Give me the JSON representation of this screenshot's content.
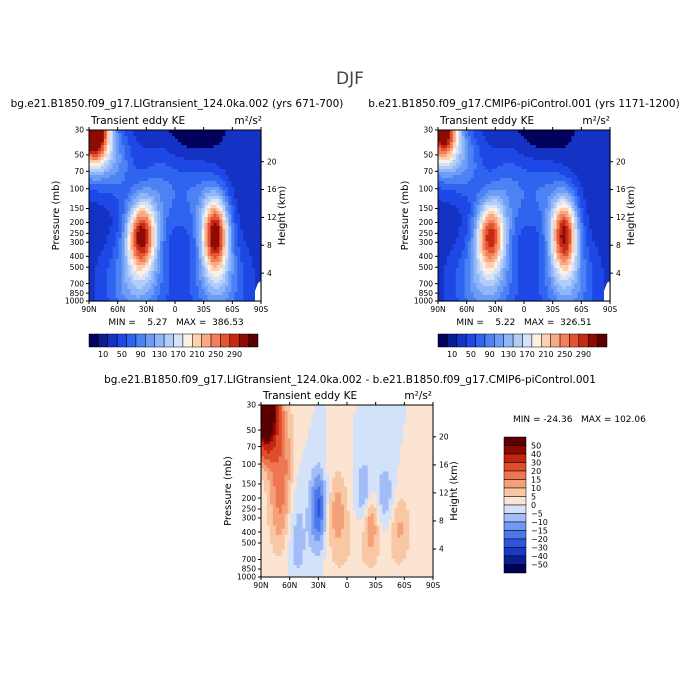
{
  "figure": {
    "title": "DJF"
  },
  "panels": [
    {
      "run_title": "bg.e21.B1850.f09_g17.LIGtransient_124.0ka.002 (yrs 671-700)",
      "variable": "Transient eddy KE",
      "units": "m²/s²",
      "stats": "MIN =    5.27   MAX =  386.53"
    },
    {
      "run_title": "b.e21.B1850.f09_g17.CMIP6-piControl.001 (yrs 1171-1200)",
      "variable": "Transient eddy KE",
      "units": "m²/s²",
      "stats": "MIN =    5.22   MAX =  326.51"
    },
    {
      "run_title": "bg.e21.B1850.f09_g17.LIGtransient_124.0ka.002 - b.e21.B1850.f09_g17.CMIP6-piControl.001",
      "variable": "Transient eddy KE",
      "units": "m²/s²",
      "stats": "MIN = -24.36   MAX = 102.06"
    }
  ],
  "chart_data": [
    {
      "type": "heatmap",
      "title": "bg.e21.B1850.f09_g17.LIGtransient_124.0ka.002 (yrs 671-700)",
      "xlabel": "",
      "ylabel": "Pressure (mb)",
      "ylabel_right": "Height (km)",
      "x_ticks": [
        "90N",
        "60N",
        "30N",
        "0",
        "30S",
        "60S",
        "90S"
      ],
      "y_ticks": [
        30,
        50,
        70,
        100,
        150,
        200,
        250,
        300,
        400,
        500,
        700,
        850,
        1000
      ],
      "y_right_ticks": [
        4,
        8,
        12,
        16,
        20
      ],
      "ylim": [
        1000,
        30
      ],
      "y_scale": "log",
      "colorbar_levels": [
        10,
        50,
        90,
        130,
        170,
        210,
        250,
        290
      ],
      "min": 5.27,
      "max": 386.53,
      "maxima": [
        {
          "lat": 80,
          "p": 30,
          "value": 386
        },
        {
          "lat": -40,
          "p": 250,
          "value": 290
        },
        {
          "lat": 35,
          "p": 270,
          "value": 250
        }
      ]
    },
    {
      "type": "heatmap",
      "title": "b.e21.B1850.f09_g17.CMIP6-piControl.001 (yrs 1171-1200)",
      "xlabel": "",
      "ylabel": "Pressure (mb)",
      "ylabel_right": "Height (km)",
      "x_ticks": [
        "90N",
        "60N",
        "30N",
        "0",
        "30S",
        "60S",
        "90S"
      ],
      "y_ticks": [
        30,
        50,
        70,
        100,
        150,
        200,
        250,
        300,
        400,
        500,
        700,
        850,
        1000
      ],
      "y_right_ticks": [
        4,
        8,
        12,
        16,
        20
      ],
      "ylim": [
        1000,
        30
      ],
      "y_scale": "log",
      "colorbar_levels": [
        10,
        50,
        90,
        130,
        170,
        210,
        250,
        290
      ],
      "min": 5.22,
      "max": 326.51,
      "maxima": [
        {
          "lat": 80,
          "p": 30,
          "value": 326
        },
        {
          "lat": -40,
          "p": 250,
          "value": 280
        },
        {
          "lat": 35,
          "p": 260,
          "value": 250
        }
      ]
    },
    {
      "type": "heatmap",
      "title": "bg.e21.B1850.f09_g17.LIGtransient_124.0ka.002 - b.e21.B1850.f09_g17.CMIP6-piControl.001",
      "xlabel": "",
      "ylabel": "Pressure (mb)",
      "ylabel_right": "Height (km)",
      "x_ticks": [
        "90N",
        "60N",
        "30N",
        "0",
        "30S",
        "60S",
        "90S"
      ],
      "y_ticks": [
        30,
        50,
        70,
        100,
        150,
        200,
        250,
        300,
        400,
        500,
        700,
        850,
        1000
      ],
      "y_right_ticks": [
        4,
        8,
        12,
        16,
        20
      ],
      "ylim": [
        1000,
        30
      ],
      "y_scale": "log",
      "colorbar_levels": [
        50,
        40,
        30,
        20,
        15,
        10,
        5,
        0,
        -5,
        -10,
        -15,
        -20,
        -30,
        -40,
        -50
      ],
      "min": -24.36,
      "max": 102.06,
      "maxima": [
        {
          "lat": 82,
          "p": 30,
          "value": 102
        },
        {
          "lat": 30,
          "p": 250,
          "value": -24
        },
        {
          "lat": -25,
          "p": 300,
          "value": 15
        }
      ]
    }
  ],
  "colors": {
    "abs_scale": [
      "#02025e",
      "#0a1e8e",
      "#1432c4",
      "#1e48e6",
      "#2e64f0",
      "#4d82f4",
      "#6d9df6",
      "#90b6f8",
      "#b3cdf9",
      "#d5e3fb",
      "#fff0e2",
      "#fdd0b2",
      "#f9a882",
      "#f2805a",
      "#e45432",
      "#c62a14",
      "#8e0a02",
      "#5a0000"
    ],
    "diff_scale": [
      "#01015a",
      "#0a1f92",
      "#1b3ac4",
      "#2d55de",
      "#4a77ea",
      "#7398f2",
      "#a1bcf7",
      "#d3e2f8",
      "#fbe4d2",
      "#f8c7a4",
      "#f4a17a",
      "#ee7752",
      "#de4d2c",
      "#c0260f",
      "#8a0a00",
      "#5a0000"
    ]
  }
}
